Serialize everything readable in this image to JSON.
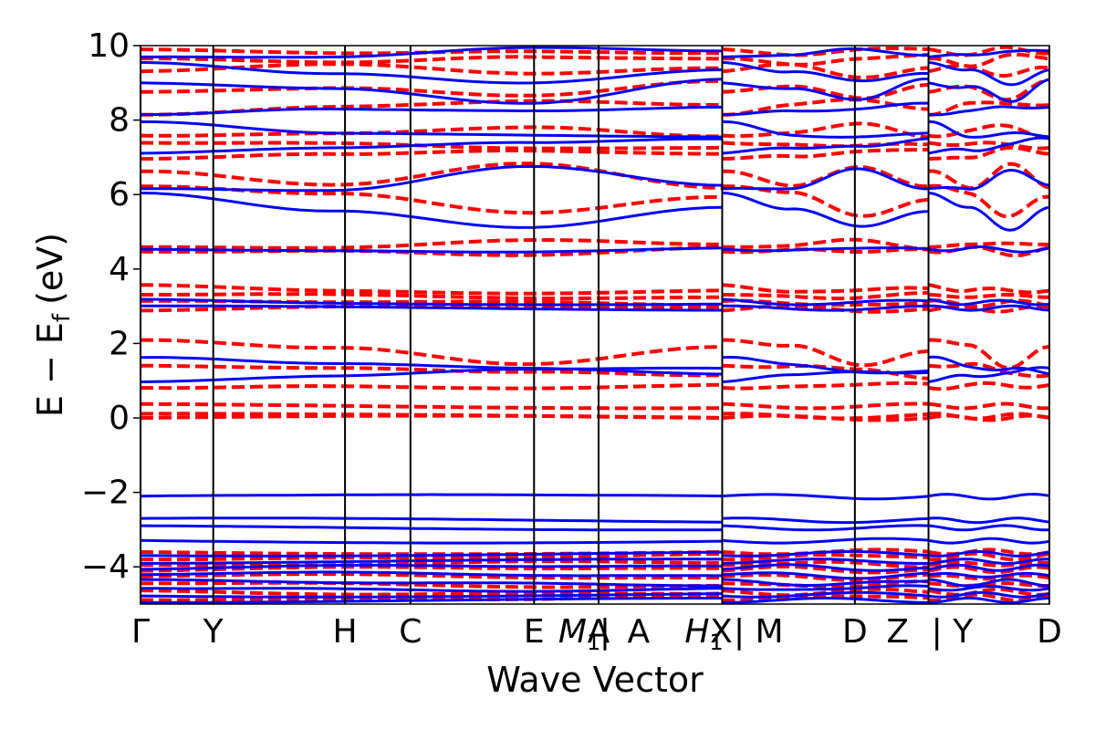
{
  "chart_data": {
    "type": "line",
    "xlabel": "Wave Vector",
    "ylabel": "E − E",
    "ylabel_subscript": "f",
    "ylabel_unit": "(eV)",
    "ylim": [
      -5,
      10
    ],
    "yticks": [
      10,
      8,
      6,
      4,
      2,
      0,
      -2,
      -4
    ],
    "ytick_labels": [
      "10",
      "8",
      "6",
      "4",
      "2",
      "0",
      "−2",
      "−4"
    ],
    "xlim": [
      0,
      1
    ],
    "kpath": [
      {
        "label": "Γ",
        "x": 0.0
      },
      {
        "label": "Y",
        "x": 0.08
      },
      {
        "label": "H",
        "x": 0.225
      },
      {
        "label": "C",
        "x": 0.297
      },
      {
        "label": "E",
        "x": 0.433
      },
      {
        "label": "M",
        "sub": "1",
        "x": 0.483
      },
      {
        "label": "A",
        "x": 0.504
      },
      {
        "label": "|",
        "x": 0.511
      },
      {
        "label": "A",
        "x": 0.548
      },
      {
        "label": "H",
        "sub": "1",
        "x": 0.62
      },
      {
        "label": "X",
        "x": 0.639
      },
      {
        "label": "| M",
        "x": 0.68
      },
      {
        "label": "D",
        "x": 0.786
      },
      {
        "label": "Z",
        "x": 0.833
      },
      {
        "label": "| Y",
        "x": 0.893
      },
      {
        "label": "D",
        "x": 1.0
      }
    ],
    "vlines": [
      0.0,
      0.08,
      0.225,
      0.297,
      0.433,
      0.504,
      0.64,
      0.786,
      0.867,
      1.0
    ],
    "segments": [
      [
        0.0,
        0.64
      ],
      [
        0.64,
        0.867
      ],
      [
        0.867,
        1.0
      ]
    ],
    "series": [
      {
        "style": "dashed",
        "color": "#ff0000",
        "bands": [
          [
            0.0,
            0.0,
            0.0,
            0.0
          ],
          [
            0.06,
            0.04,
            0.05,
            0.05
          ],
          [
            0.32,
            0.32,
            0.32,
            0.32
          ],
          [
            0.8,
            0.9,
            0.85,
            0.9
          ],
          [
            1.45,
            1.4,
            1.25,
            1.1
          ],
          [
            2.15,
            1.9,
            1.4,
            1.85
          ],
          [
            2.9,
            2.95,
            2.9,
            2.95
          ],
          [
            3.1,
            3.05,
            3.1,
            3.05
          ],
          [
            3.25,
            3.3,
            3.25,
            3.3
          ],
          [
            3.55,
            3.45,
            3.4,
            3.45
          ],
          [
            4.5,
            4.55,
            4.4,
            4.55
          ],
          [
            4.65,
            4.6,
            4.75,
            4.6
          ],
          [
            6.25,
            6.0,
            5.45,
            5.9
          ],
          [
            6.6,
            6.2,
            6.8,
            6.2
          ],
          [
            6.9,
            7.05,
            7.2,
            7.15
          ],
          [
            7.35,
            7.4,
            7.3,
            7.3
          ],
          [
            7.6,
            7.7,
            7.85,
            7.55
          ],
          [
            8.2,
            8.4,
            8.5,
            8.35
          ],
          [
            8.8,
            8.85,
            8.6,
            9.0
          ],
          [
            9.3,
            9.45,
            9.2,
            9.4
          ],
          [
            9.6,
            9.5,
            9.7,
            9.7
          ],
          [
            9.85,
            9.8,
            9.9,
            9.85
          ],
          [
            -3.6,
            -3.6,
            -3.6,
            -3.6
          ],
          [
            -3.75,
            -3.7,
            -3.75,
            -3.7
          ],
          [
            -3.9,
            -3.95,
            -3.9,
            -3.95
          ],
          [
            -4.1,
            -4.05,
            -4.1,
            -4.05
          ],
          [
            -4.3,
            -4.25,
            -4.3,
            -4.25
          ],
          [
            -4.5,
            -4.45,
            -4.5,
            -4.45
          ],
          [
            -4.65,
            -4.7,
            -4.65,
            -4.7
          ],
          [
            -4.85,
            -4.8,
            -4.85,
            -4.8
          ]
        ]
      },
      {
        "style": "solid",
        "color": "#0000ff",
        "bands": [
          [
            -2.1,
            -2.12,
            -2.12,
            -2.1
          ],
          [
            -2.75,
            -2.75,
            -2.75,
            -2.75
          ],
          [
            -2.95,
            -2.95,
            -2.95,
            -2.95
          ],
          [
            -3.3,
            -3.3,
            -3.3,
            -3.3
          ],
          [
            -3.65,
            -3.65,
            -3.65,
            -3.65
          ],
          [
            -3.85,
            -3.85,
            -3.85,
            -3.85
          ],
          [
            -4.05,
            -4.0,
            -4.05,
            -4.0
          ],
          [
            -4.25,
            -4.2,
            -4.25,
            -4.2
          ],
          [
            -4.4,
            -4.45,
            -4.4,
            -4.45
          ],
          [
            -4.6,
            -4.55,
            -4.6,
            -4.55
          ],
          [
            -4.75,
            -4.75,
            -4.75,
            -4.75
          ],
          [
            -4.9,
            -4.9,
            -4.9,
            -4.9
          ],
          [
            1.0,
            1.1,
            1.25,
            1.3
          ],
          [
            1.6,
            1.4,
            1.3,
            1.2
          ],
          [
            2.95,
            2.95,
            2.95,
            2.95
          ],
          [
            3.15,
            3.1,
            3.1,
            3.1
          ],
          [
            4.55,
            4.55,
            4.5,
            4.55
          ],
          [
            6.1,
            5.6,
            5.1,
            5.6
          ],
          [
            6.2,
            6.1,
            6.7,
            6.2
          ],
          [
            7.1,
            7.2,
            7.35,
            7.5
          ],
          [
            7.9,
            7.6,
            7.6,
            7.6
          ],
          [
            8.1,
            8.3,
            8.3,
            8.4
          ],
          [
            9.0,
            8.9,
            8.5,
            9.1
          ],
          [
            9.6,
            9.3,
            9.0,
            9.3
          ],
          [
            9.75,
            9.7,
            9.9,
            9.8
          ]
        ]
      }
    ]
  }
}
